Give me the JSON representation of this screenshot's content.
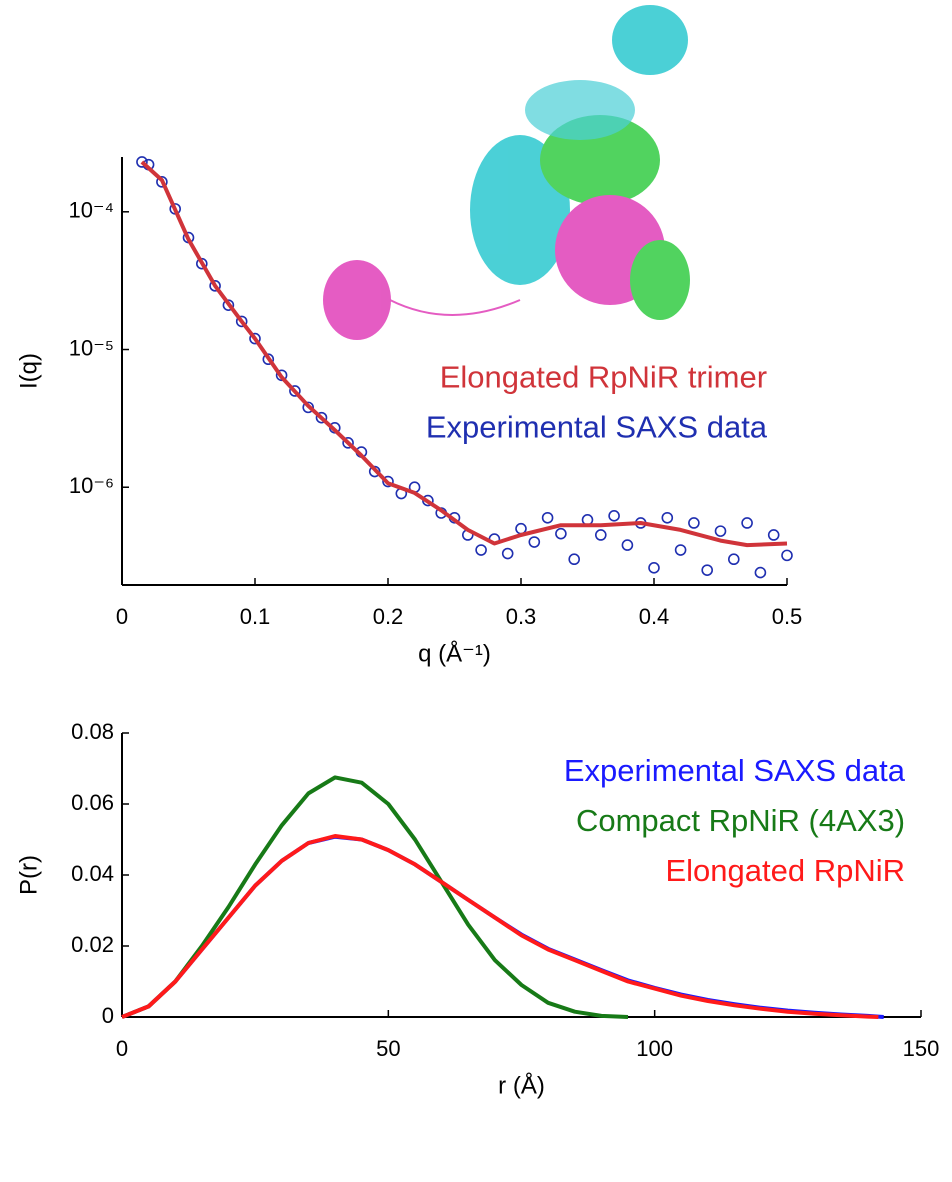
{
  "chart_data": [
    {
      "type": "scatter",
      "xlabel": "q (Å⁻¹)",
      "ylabel": "I(q)",
      "xlim": [
        0,
        0.5
      ],
      "xticks": [
        0,
        0.1,
        0.2,
        0.3,
        0.4,
        0.5
      ],
      "ylim": [
        1.95e-07,
        0.00025
      ],
      "yscale": "log",
      "yticks": [
        {
          "value": 0.0001,
          "label": "10⁻⁴"
        },
        {
          "value": 1e-05,
          "label": "10⁻⁵"
        },
        {
          "value": 1e-06,
          "label": "10⁻⁶"
        }
      ],
      "legend": "right",
      "series": [
        {
          "name": "Elongated RpNiR trimer",
          "color": "#d0343a",
          "kind": "line",
          "x": [
            0.015,
            0.03,
            0.05,
            0.07,
            0.09,
            0.1,
            0.12,
            0.14,
            0.16,
            0.18,
            0.2,
            0.22,
            0.24,
            0.26,
            0.28,
            0.3,
            0.33,
            0.36,
            0.39,
            0.42,
            0.45,
            0.47,
            0.5
          ],
          "values": [
            0.00023,
            0.00017,
            6.3e-05,
            2.9e-05,
            1.6e-05,
            1.2e-05,
            6.3e-06,
            3.9e-06,
            2.6e-06,
            1.7e-06,
            1.07e-06,
            9.1e-07,
            6.8e-07,
            4.9e-07,
            3.9e-07,
            4.5e-07,
            5.3e-07,
            5.3e-07,
            5.5e-07,
            4.9e-07,
            4.1e-07,
            3.8e-07,
            3.9e-07
          ]
        },
        {
          "name": "Experimental SAXS data",
          "color": "#1f2fb0",
          "kind": "markers",
          "x": [
            0.015,
            0.02,
            0.03,
            0.04,
            0.05,
            0.06,
            0.07,
            0.08,
            0.09,
            0.1,
            0.11,
            0.12,
            0.13,
            0.14,
            0.15,
            0.16,
            0.17,
            0.18,
            0.19,
            0.2,
            0.21,
            0.22,
            0.23,
            0.24,
            0.25,
            0.26,
            0.27,
            0.28,
            0.29,
            0.3,
            0.31,
            0.32,
            0.33,
            0.34,
            0.35,
            0.36,
            0.37,
            0.38,
            0.39,
            0.4,
            0.41,
            0.42,
            0.43,
            0.44,
            0.45,
            0.46,
            0.47,
            0.48,
            0.49,
            0.5
          ],
          "values": [
            0.00023,
            0.00022,
            0.000165,
            0.000105,
            6.5e-05,
            4.2e-05,
            2.9e-05,
            2.1e-05,
            1.6e-05,
            1.2e-05,
            8.5e-06,
            6.5e-06,
            5e-06,
            3.8e-06,
            3.2e-06,
            2.7e-06,
            2.1e-06,
            1.8e-06,
            1.3e-06,
            1.1e-06,
            9e-07,
            1e-06,
            8e-07,
            6.5e-07,
            6e-07,
            4.5e-07,
            3.5e-07,
            4.2e-07,
            3.3e-07,
            5e-07,
            4e-07,
            6e-07,
            4.6e-07,
            3e-07,
            5.8e-07,
            4.5e-07,
            6.2e-07,
            3.8e-07,
            5.5e-07,
            2.6e-07,
            6e-07,
            3.5e-07,
            5.5e-07,
            2.5e-07,
            4.8e-07,
            3e-07,
            5.5e-07,
            2.4e-07,
            4.5e-07,
            3.2e-07
          ]
        }
      ]
    },
    {
      "type": "line",
      "xlabel": "r (Å)",
      "ylabel": "P(r)",
      "xlim": [
        0,
        150
      ],
      "xticks": [
        0,
        50,
        100,
        150
      ],
      "ylim": [
        0,
        0.08
      ],
      "yticks": [
        0,
        0.02,
        0.04,
        0.06,
        0.08
      ],
      "legend": "upper right",
      "series": [
        {
          "name": "Experimental SAXS data",
          "color": "#1a1aff",
          "kind": "line",
          "x": [
            0,
            5,
            10,
            15,
            20,
            25,
            30,
            35,
            40,
            45,
            50,
            55,
            60,
            65,
            70,
            75,
            80,
            85,
            90,
            95,
            100,
            105,
            110,
            115,
            120,
            125,
            130,
            135,
            140,
            143
          ],
          "values": [
            0,
            0.003,
            0.01,
            0.019,
            0.028,
            0.037,
            0.044,
            0.049,
            0.0508,
            0.05,
            0.047,
            0.043,
            0.038,
            0.033,
            0.028,
            0.0232,
            0.0192,
            0.0162,
            0.0132,
            0.0103,
            0.0082,
            0.0063,
            0.0048,
            0.0036,
            0.0026,
            0.0018,
            0.0012,
            0.0007,
            0.0003,
            0
          ]
        },
        {
          "name": "Compact RpNiR (4AX3)",
          "color": "#177a17",
          "kind": "line",
          "x": [
            0,
            5,
            10,
            15,
            20,
            25,
            30,
            35,
            40,
            45,
            50,
            55,
            60,
            65,
            70,
            75,
            80,
            85,
            90,
            95
          ],
          "values": [
            0,
            0.003,
            0.01,
            0.02,
            0.031,
            0.043,
            0.054,
            0.063,
            0.0675,
            0.066,
            0.06,
            0.05,
            0.038,
            0.026,
            0.016,
            0.009,
            0.004,
            0.0015,
            0.0003,
            0
          ]
        },
        {
          "name": "Elongated RpNiR",
          "color": "#ff1a1a",
          "kind": "line",
          "x": [
            0,
            5,
            10,
            15,
            20,
            25,
            30,
            35,
            40,
            45,
            50,
            55,
            60,
            65,
            70,
            75,
            80,
            85,
            90,
            95,
            100,
            105,
            110,
            115,
            120,
            125,
            130,
            135,
            140,
            142
          ],
          "values": [
            0,
            0.003,
            0.01,
            0.019,
            0.028,
            0.037,
            0.044,
            0.049,
            0.051,
            0.05,
            0.047,
            0.043,
            0.038,
            0.033,
            0.028,
            0.023,
            0.019,
            0.016,
            0.013,
            0.01,
            0.008,
            0.006,
            0.0045,
            0.0033,
            0.0023,
            0.0015,
            0.0009,
            0.0005,
            0.0001,
            0
          ]
        }
      ]
    }
  ]
}
